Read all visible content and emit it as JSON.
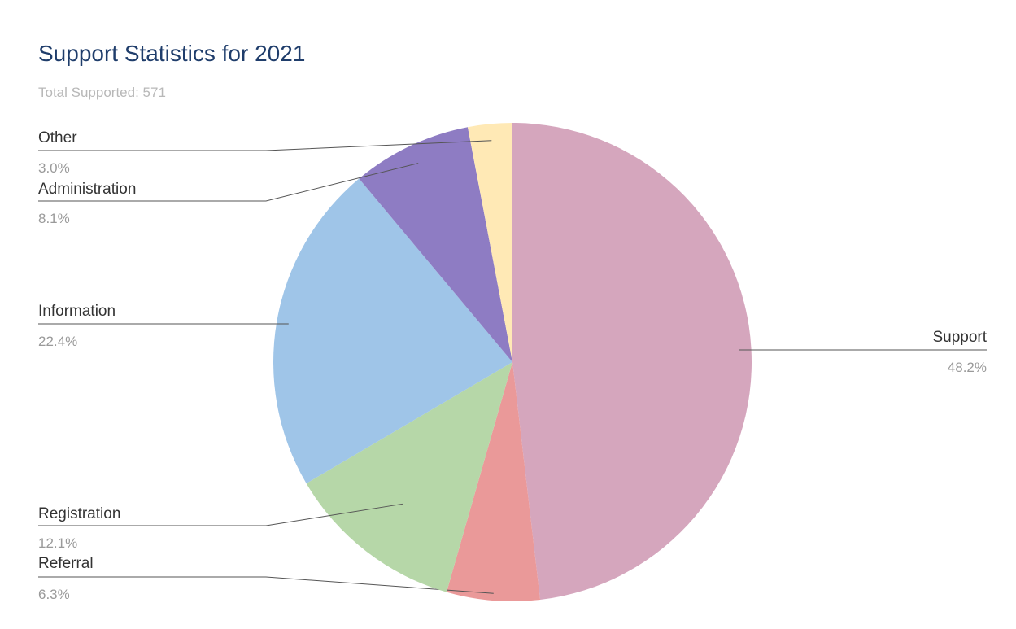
{
  "chart_data": {
    "type": "pie",
    "title": "Support Statistics for 2021",
    "subtitle": "Total Supported: 571",
    "slices": [
      {
        "label": "Support",
        "value": 48.2,
        "pct_label": "48.2%",
        "color": "#d5a6bd"
      },
      {
        "label": "Referral",
        "value": 6.3,
        "pct_label": "6.3%",
        "color": "#ea9999"
      },
      {
        "label": "Registration",
        "value": 12.1,
        "pct_label": "12.1%",
        "color": "#b6d7a8"
      },
      {
        "label": "Information",
        "value": 22.4,
        "pct_label": "22.4%",
        "color": "#9fc5e8"
      },
      {
        "label": "Administration",
        "value": 8.1,
        "pct_label": "8.1%",
        "color": "#8e7cc3"
      },
      {
        "label": "Other",
        "value": 3.0,
        "pct_label": "3.0%",
        "color": "#ffe9b5"
      }
    ],
    "legend": "none",
    "start_angle_deg": 0,
    "direction": "clockwise"
  }
}
